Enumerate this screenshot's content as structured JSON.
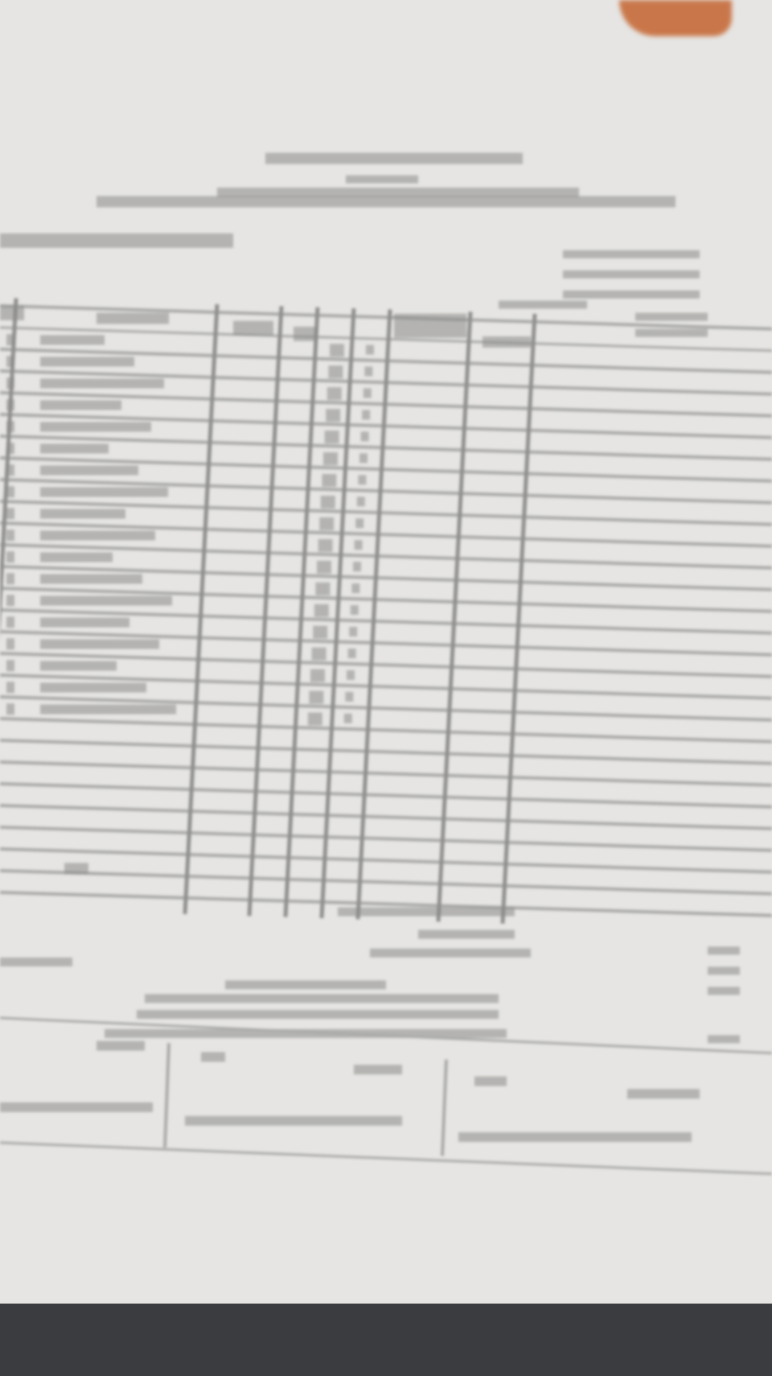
{
  "colors": {
    "paper": "#e6e5e3",
    "ink": "#8a8a88",
    "rule": "#a9a9a7",
    "background_bottom": "#3a3c40",
    "corner_object": "#c9774a"
  }
}
